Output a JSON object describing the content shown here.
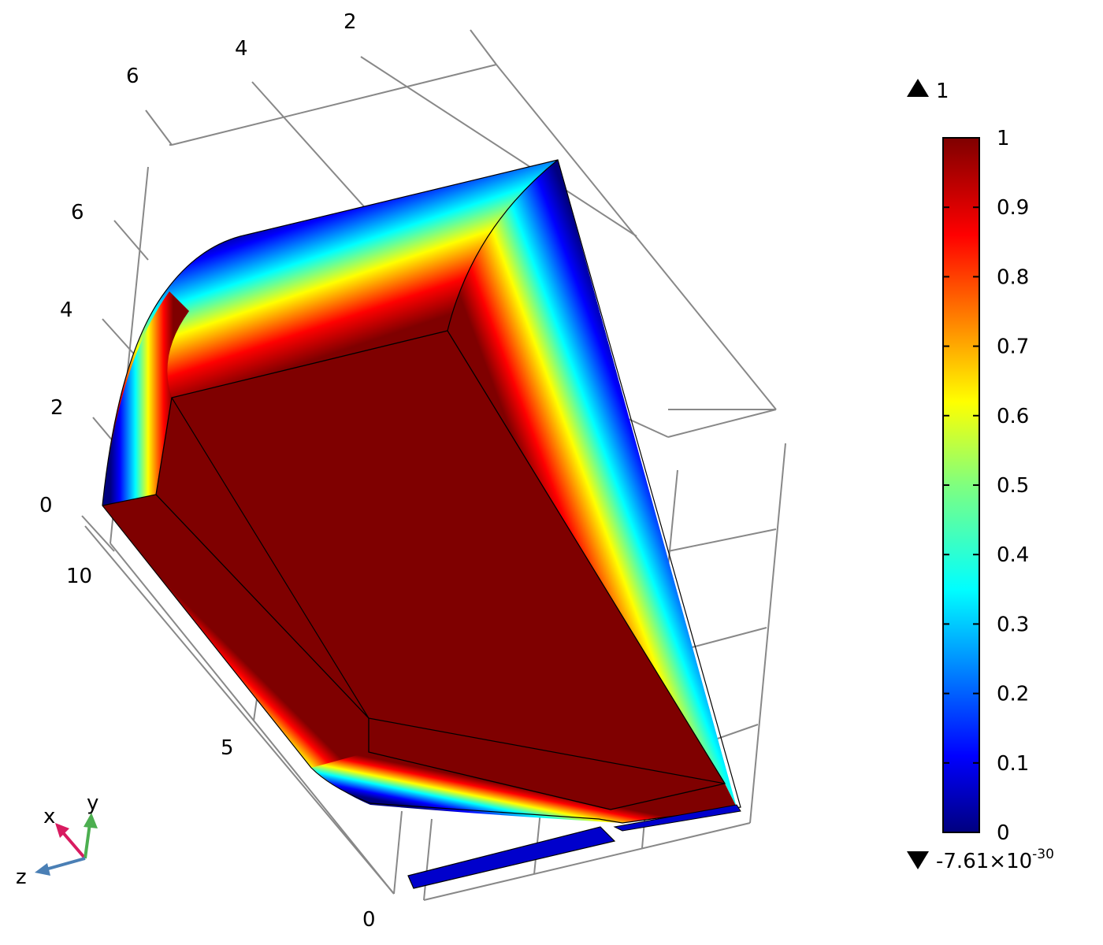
{
  "chart_data": {
    "type": "heatmap",
    "title": "",
    "plot_kind": "3D surface plot with rainbow (jet) colormap",
    "colormap": "jet",
    "axes": {
      "x": {
        "label": "x",
        "tick_labels": [
          "0",
          "5",
          "10"
        ]
      },
      "y": {
        "label": "y",
        "tick_labels": [
          "0",
          "2",
          "4",
          "6"
        ]
      },
      "z": {
        "label": "z",
        "tick_labels": [
          "2",
          "4",
          "6"
        ]
      }
    },
    "grid": true,
    "colorbar": {
      "range": [
        0,
        1
      ],
      "tick_labels": [
        "1",
        "0.9",
        "0.8",
        "0.7",
        "0.6",
        "0.5",
        "0.4",
        "0.3",
        "0.2",
        "0.1",
        "0"
      ],
      "max_label": "1",
      "min_label_mantissa": "-7.61",
      "min_label_times": "×10",
      "min_label_exponent": "-30",
      "placement": "right"
    },
    "triad": {
      "x": "x",
      "y": "y",
      "z": "z"
    }
  }
}
